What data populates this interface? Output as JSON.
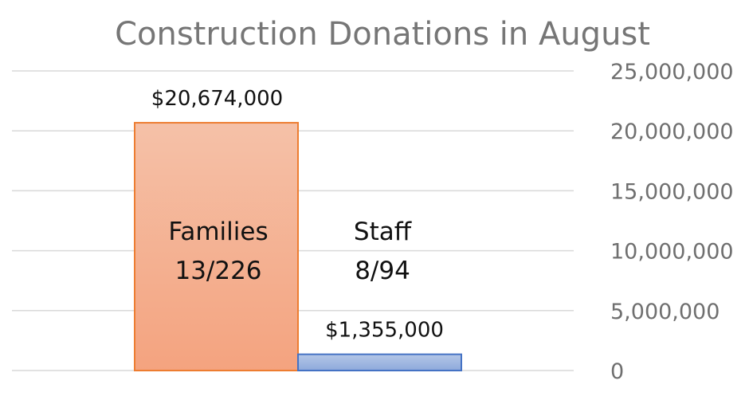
{
  "chart_data": {
    "type": "bar",
    "title": "Construction Donations in August",
    "xlabel": "",
    "ylabel": "",
    "ylim": [
      0,
      25000000
    ],
    "y_ticks": [
      "25,000,000",
      "20,000,000",
      "15,000,000",
      "10,000,000",
      "5,000,000",
      "0"
    ],
    "y_tick_values": [
      25000000,
      20000000,
      15000000,
      10000000,
      5000000,
      0
    ],
    "y_axis_side": "right",
    "grid": true,
    "legend": "none",
    "categories": [
      "Families",
      "Staff"
    ],
    "category_notes": [
      "13/226",
      "8/94"
    ],
    "values": [
      20674000,
      1355000
    ],
    "data_labels": [
      "$20,674,000",
      "$1,355,000"
    ],
    "colors": {
      "families_fill": "#f4a37f",
      "families_fill_top": "#f5c1a8",
      "families_stroke": "#ed7d31",
      "staff_fill": "#8ea9db",
      "staff_fill_top": "#b4c7e7",
      "staff_stroke": "#4472c4"
    }
  }
}
